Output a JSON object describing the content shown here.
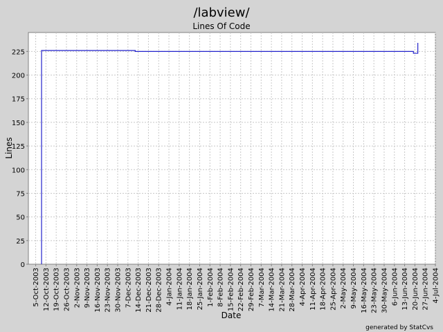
{
  "chart_data": {
    "type": "line",
    "title": "/labview/",
    "subtitle": "Lines Of Code",
    "xlabel": "Date",
    "ylabel": "Lines",
    "footer": "generated by StatCvs",
    "ylim": [
      0,
      245
    ],
    "yticks": [
      0,
      25,
      50,
      75,
      100,
      125,
      150,
      175,
      200,
      225
    ],
    "xlim": [
      "2003-09-30",
      "2004-07-04"
    ],
    "xticks": [
      "5-Oct-2003",
      "12-Oct-2003",
      "19-Oct-2003",
      "26-Oct-2003",
      "2-Nov-2003",
      "9-Nov-2003",
      "16-Nov-2003",
      "23-Nov-2003",
      "30-Nov-2003",
      "7-Dec-2003",
      "14-Dec-2003",
      "21-Dec-2003",
      "28-Dec-2003",
      "4-Jan-2004",
      "11-Jan-2004",
      "18-Jan-2004",
      "25-Jan-2004",
      "1-Feb-2004",
      "8-Feb-2004",
      "15-Feb-2004",
      "22-Feb-2004",
      "29-Feb-2004",
      "7-Mar-2004",
      "14-Mar-2004",
      "21-Mar-2004",
      "28-Mar-2004",
      "4-Apr-2004",
      "11-Apr-2004",
      "18-Apr-2004",
      "25-Apr-2004",
      "2-May-2004",
      "9-May-2004",
      "16-May-2004",
      "23-May-2004",
      "30-May-2004",
      "6-Jun-2004",
      "13-Jun-2004",
      "20-Jun-2004",
      "27-Jun-2004",
      "4-Jul-2004"
    ],
    "grid": true,
    "step": true,
    "series": [
      {
        "color": "#2222cc",
        "points": [
          {
            "x": "2003-10-09",
            "y": 0
          },
          {
            "x": "2003-10-09",
            "y": 226
          },
          {
            "x": "2003-12-12",
            "y": 226
          },
          {
            "x": "2003-12-12",
            "y": 225
          },
          {
            "x": "2004-06-19",
            "y": 225
          },
          {
            "x": "2004-06-19",
            "y": 223
          },
          {
            "x": "2004-06-22",
            "y": 223
          },
          {
            "x": "2004-06-22",
            "y": 234
          }
        ]
      }
    ]
  }
}
